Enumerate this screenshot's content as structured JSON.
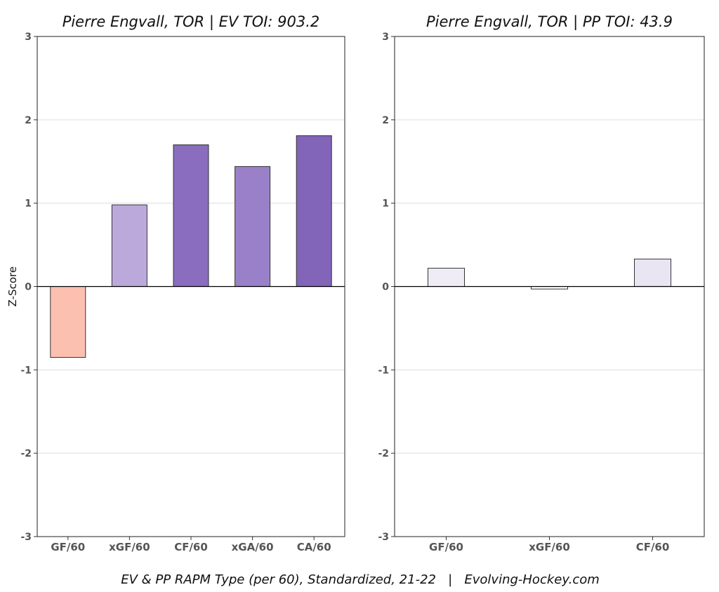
{
  "caption": "EV & PP RAPM Type (per 60), Standardized, 21-22   |   Evolving-Hockey.com",
  "chart_data": [
    {
      "type": "bar",
      "title": "Pierre Engvall, TOR  |  EV TOI: 903.2",
      "ylabel": "Z-Score",
      "xlabel": "",
      "ylim": [
        -3,
        3
      ],
      "yticks": [
        3,
        2,
        1,
        0,
        -1,
        -2,
        -3
      ],
      "grid": true,
      "categories": [
        "GF/60",
        "xGF/60",
        "CF/60",
        "xGA/60",
        "CA/60"
      ],
      "values": [
        -0.85,
        0.98,
        1.7,
        1.44,
        1.81
      ],
      "colors": [
        "#fcc0b0",
        "#bca9dc",
        "#8a6dbf",
        "#9a80c8",
        "#8264b8"
      ]
    },
    {
      "type": "bar",
      "title": "Pierre Engvall, TOR  |  PP TOI: 43.9",
      "ylabel": "",
      "xlabel": "",
      "ylim": [
        -3,
        3
      ],
      "yticks": [
        3,
        2,
        1,
        0,
        -1,
        -2,
        -3
      ],
      "grid": true,
      "categories": [
        "GF/60",
        "xGF/60",
        "CF/60"
      ],
      "values": [
        0.22,
        -0.03,
        0.33
      ],
      "colors": [
        "#efecf6",
        "#ffffff",
        "#e9e5f3"
      ]
    }
  ]
}
